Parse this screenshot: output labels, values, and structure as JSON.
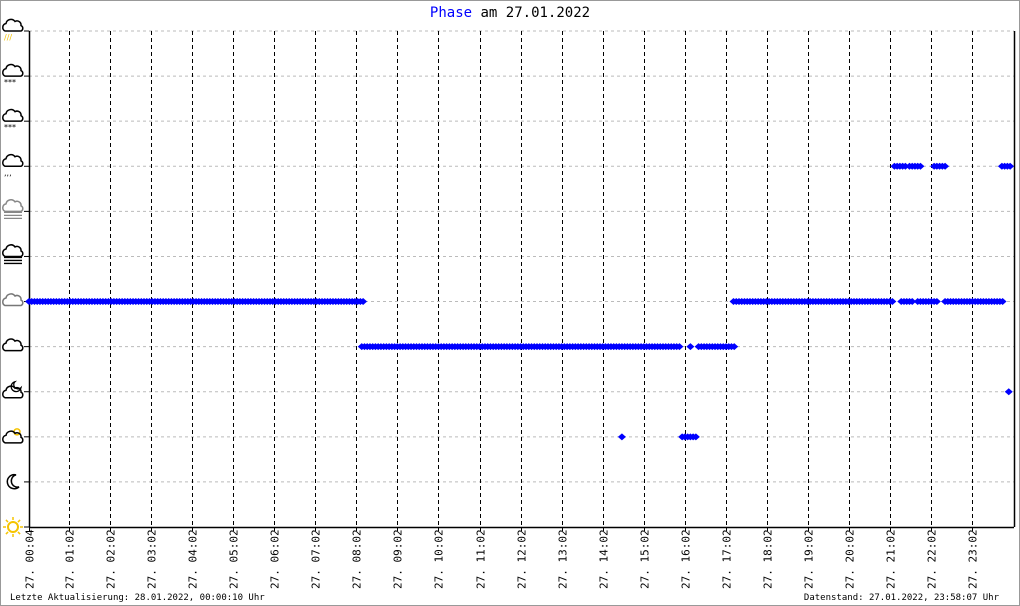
{
  "title": {
    "highlight": "Phase",
    "rest": " am 27.01.2022"
  },
  "footer": {
    "left": "Letzte Aktualisierung: 28.01.2022, 00:00:10 Uhr",
    "right": "Datenstand: 27.01.2022, 23:58:07 Uhr"
  },
  "colors": {
    "series": "#0000ff",
    "grid_h": "#bbbbbb",
    "grid_v": "#000000",
    "sun": "#f5c400"
  },
  "chart_data": {
    "type": "scatter",
    "title": "Phase am 27.01.2022",
    "xlabel": "",
    "ylabel": "",
    "xlim": [
      "00:04",
      "24:00"
    ],
    "x_tick_labels": [
      "27. 00:04",
      "27. 01:02",
      "27. 02:02",
      "27. 03:02",
      "27. 04:02",
      "27. 05:02",
      "27. 06:02",
      "27. 07:02",
      "27. 08:02",
      "27. 09:02",
      "27. 10:02",
      "27. 11:02",
      "27. 12:02",
      "27. 13:02",
      "27. 14:02",
      "27. 15:02",
      "27. 16:02",
      "27. 17:02",
      "27. 18:02",
      "27. 19:02",
      "27. 20:02",
      "27. 21:02",
      "27. 22:02",
      "27. 23:02"
    ],
    "x_tick_times": [
      "00:04",
      "01:02",
      "02:02",
      "03:02",
      "04:02",
      "05:02",
      "06:02",
      "07:02",
      "08:02",
      "09:02",
      "10:02",
      "11:02",
      "12:02",
      "13:02",
      "14:02",
      "15:02",
      "16:02",
      "17:02",
      "18:02",
      "19:02",
      "20:02",
      "21:02",
      "22:02",
      "23:02"
    ],
    "y_categories": [
      "sun-icon",
      "moon-icon",
      "cloud-sun-icon",
      "cloud-moon-icon",
      "cloud-icon",
      "overcast-icon",
      "fog-icon",
      "haze-icon",
      "rain-icon",
      "sleet-icon",
      "snow-icon",
      "thunderstorm-icon"
    ],
    "grid": true,
    "segments": [
      {
        "level": "overcast-icon",
        "from": "00:04",
        "to": "08:12"
      },
      {
        "level": "cloud-icon",
        "from": "08:10",
        "to": "15:56"
      },
      {
        "level": "cloud-icon",
        "from": "16:10",
        "to": "16:10"
      },
      {
        "level": "cloud-icon",
        "from": "16:22",
        "to": "17:14"
      },
      {
        "level": "cloud-sun-icon",
        "from": "14:30",
        "to": "14:30"
      },
      {
        "level": "cloud-sun-icon",
        "from": "15:58",
        "to": "16:20"
      },
      {
        "level": "overcast-icon",
        "from": "17:13",
        "to": "21:08"
      },
      {
        "level": "overcast-icon",
        "from": "21:18",
        "to": "21:35"
      },
      {
        "level": "overcast-icon",
        "from": "21:42",
        "to": "22:12"
      },
      {
        "level": "overcast-icon",
        "from": "22:22",
        "to": "23:47"
      },
      {
        "level": "rain-icon",
        "from": "21:08",
        "to": "21:25"
      },
      {
        "level": "rain-icon",
        "from": "21:30",
        "to": "21:48"
      },
      {
        "level": "rain-icon",
        "from": "22:06",
        "to": "22:24"
      },
      {
        "level": "rain-icon",
        "from": "23:45",
        "to": "24:00"
      },
      {
        "level": "cloud-moon-icon",
        "from": "23:55",
        "to": "23:58"
      }
    ]
  }
}
